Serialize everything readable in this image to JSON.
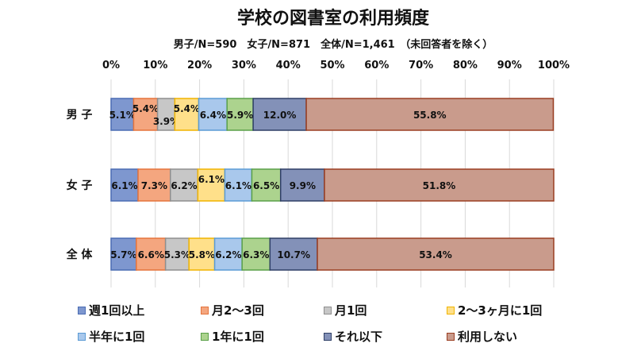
{
  "chart_data": {
    "type": "bar",
    "orientation": "horizontal",
    "stacked": true,
    "title": "学校の図書室の利用頻度",
    "subtitle": "男子/N=590　女子/N=871　全体/N=1,461　（未回答者を除く）",
    "categories": [
      "男 子",
      "女 子",
      "全 体"
    ],
    "xlim": [
      0,
      100
    ],
    "xticks": [
      "0%",
      "10%",
      "20%",
      "30%",
      "40%",
      "50%",
      "60%",
      "70%",
      "80%",
      "90%",
      "100%"
    ],
    "grid": true,
    "legend_position": "bottom",
    "series": [
      {
        "name": "週1回以上",
        "color": "#7e97cf",
        "values": [
          5.1,
          6.1,
          5.7
        ],
        "labels": [
          "5.1%",
          "6.1%",
          "5.7%"
        ]
      },
      {
        "name": "月2～3回",
        "color": "#f4a67f",
        "values": [
          5.4,
          7.3,
          6.6
        ],
        "labels": [
          "5.4%",
          "7.3%",
          "6.6%"
        ]
      },
      {
        "name": "月1回",
        "color": "#c7c7c7",
        "values": [
          3.9,
          6.2,
          5.3
        ],
        "labels": [
          "3.9%",
          "6.2%",
          "5.3%"
        ]
      },
      {
        "name": "2～3ヶ月に1回",
        "color": "#ffe08a",
        "values": [
          5.4,
          6.1,
          5.8
        ],
        "labels": [
          "5.4%",
          "6.1%",
          "5.8%"
        ]
      },
      {
        "name": "半年に1回",
        "color": "#a9c8ec",
        "values": [
          6.4,
          6.1,
          6.2
        ],
        "labels": [
          "6.4%",
          "6.1%",
          "6.2%"
        ]
      },
      {
        "name": "1年に1回",
        "color": "#acd38e",
        "values": [
          5.9,
          6.5,
          6.3
        ],
        "labels": [
          "5.9%",
          "6.5%",
          "6.3%"
        ]
      },
      {
        "name": "それ以下",
        "color": "#8391b8",
        "values": [
          12.0,
          9.9,
          10.7
        ],
        "labels": [
          "12.0%",
          "9.9%",
          "10.7%"
        ]
      },
      {
        "name": "利用しない",
        "color": "#c99b8c",
        "values": [
          55.8,
          51.8,
          53.4
        ],
        "labels": [
          "55.8%",
          "51.8%",
          "53.4%"
        ]
      }
    ],
    "border_colors": [
      "#4a6cb3",
      "#e5743c",
      "#8f8f8f",
      "#f0b400",
      "#5b9bd5",
      "#5aa048",
      "#2f3f66",
      "#9b3e22"
    ]
  }
}
